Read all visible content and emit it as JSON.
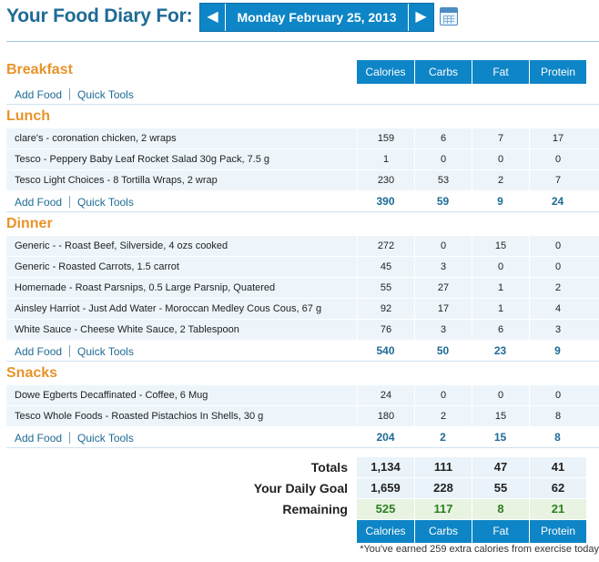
{
  "header": {
    "title": "Your Food Diary For:",
    "date": "Monday February 25, 2013",
    "prev_label": "◀",
    "next_label": "▶"
  },
  "columns": [
    "Calories",
    "Carbs",
    "Fat",
    "Protein"
  ],
  "links": {
    "add_food": "Add Food",
    "quick_tools": "Quick Tools"
  },
  "meals": {
    "breakfast": {
      "title": "Breakfast"
    },
    "lunch": {
      "title": "Lunch",
      "entries": [
        {
          "desc": "clare's - coronation chicken, 2 wraps",
          "calories": "159",
          "carbs": "6",
          "fat": "7",
          "protein": "17"
        },
        {
          "desc": "Tesco - Peppery Baby Leaf Rocket Salad 30g Pack, 7.5 g",
          "calories": "1",
          "carbs": "0",
          "fat": "0",
          "protein": "0"
        },
        {
          "desc": "Tesco Light Choices - 8 Tortilla Wraps, 2 wrap",
          "calories": "230",
          "carbs": "53",
          "fat": "2",
          "protein": "7"
        }
      ],
      "totals": {
        "calories": "390",
        "carbs": "59",
        "fat": "9",
        "protein": "24"
      }
    },
    "dinner": {
      "title": "Dinner",
      "entries": [
        {
          "desc": "Generic - - Roast Beef, Silverside, 4 ozs cooked",
          "calories": "272",
          "carbs": "0",
          "fat": "15",
          "protein": "0"
        },
        {
          "desc": "Generic - Roasted Carrots, 1.5 carrot",
          "calories": "45",
          "carbs": "3",
          "fat": "0",
          "protein": "0"
        },
        {
          "desc": "Homemade - Roast Parsnips, 0.5 Large Parsnip, Quatered",
          "calories": "55",
          "carbs": "27",
          "fat": "1",
          "protein": "2"
        },
        {
          "desc": "Ainsley Harriot - Just Add Water - Moroccan Medley Cous Cous, 67 g",
          "calories": "92",
          "carbs": "17",
          "fat": "1",
          "protein": "4"
        },
        {
          "desc": "White Sauce - Cheese White Sauce, 2 Tablespoon",
          "calories": "76",
          "carbs": "3",
          "fat": "6",
          "protein": "3"
        }
      ],
      "totals": {
        "calories": "540",
        "carbs": "50",
        "fat": "23",
        "protein": "9"
      }
    },
    "snacks": {
      "title": "Snacks",
      "entries": [
        {
          "desc": "Dowe Egberts Decaffinated - Coffee, 6 Mug",
          "calories": "24",
          "carbs": "0",
          "fat": "0",
          "protein": "0"
        },
        {
          "desc": "Tesco Whole Foods - Roasted Pistachios In Shells, 30 g",
          "calories": "180",
          "carbs": "2",
          "fat": "15",
          "protein": "8"
        }
      ],
      "totals": {
        "calories": "204",
        "carbs": "2",
        "fat": "15",
        "protein": "8"
      }
    }
  },
  "summary": {
    "totals": {
      "label": "Totals",
      "calories": "1,134",
      "carbs": "111",
      "fat": "47",
      "protein": "41"
    },
    "goal": {
      "label": "Your Daily Goal",
      "calories": "1,659",
      "carbs": "228",
      "fat": "55",
      "protein": "62"
    },
    "remaining": {
      "label": "Remaining",
      "calories": "525",
      "carbs": "117",
      "fat": "8",
      "protein": "21"
    }
  },
  "note": "*You've earned 259 extra calories from exercise today",
  "colors": {
    "accent": "#0e85c6",
    "meal_title": "#e8932a",
    "link": "#1e6b96",
    "remaining": "#2d7f1f"
  }
}
